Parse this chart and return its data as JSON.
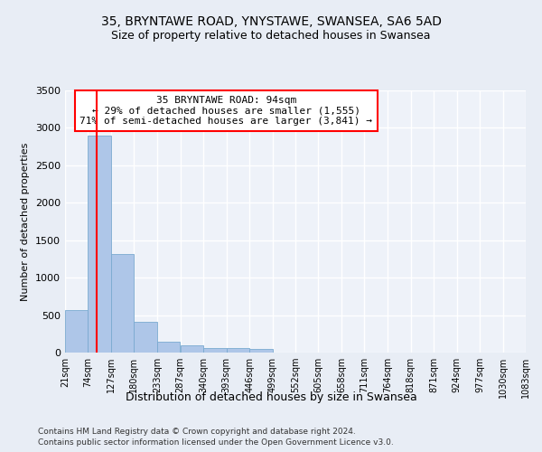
{
  "title1": "35, BRYNTAWE ROAD, YNYSTAWE, SWANSEA, SA6 5AD",
  "title2": "Size of property relative to detached houses in Swansea",
  "xlabel": "Distribution of detached houses by size in Swansea",
  "ylabel": "Number of detached properties",
  "footnote1": "Contains HM Land Registry data © Crown copyright and database right 2024.",
  "footnote2": "Contains public sector information licensed under the Open Government Licence v3.0.",
  "bin_edges": [
    21,
    74,
    127,
    180,
    233,
    287,
    340,
    393,
    446,
    499,
    552,
    605,
    658,
    711,
    764,
    818,
    871,
    924,
    977,
    1030,
    1083
  ],
  "bar_heights": [
    570,
    2900,
    1320,
    410,
    150,
    95,
    65,
    55,
    50,
    0,
    0,
    0,
    0,
    0,
    0,
    0,
    0,
    0,
    0,
    0
  ],
  "bar_color": "#aec6e8",
  "bar_edge_color": "#7aaad0",
  "red_line_x": 94,
  "annotation_title": "35 BRYNTAWE ROAD: 94sqm",
  "annotation_line1": "← 29% of detached houses are smaller (1,555)",
  "annotation_line2": "71% of semi-detached houses are larger (3,841) →",
  "ylim": [
    0,
    3500
  ],
  "yticks": [
    0,
    500,
    1000,
    1500,
    2000,
    2500,
    3000,
    3500
  ],
  "bg_color": "#e8edf5",
  "plot_bg_color": "#eef2f9",
  "grid_color": "#ffffff",
  "title_fontsize": 10,
  "subtitle_fontsize": 9
}
